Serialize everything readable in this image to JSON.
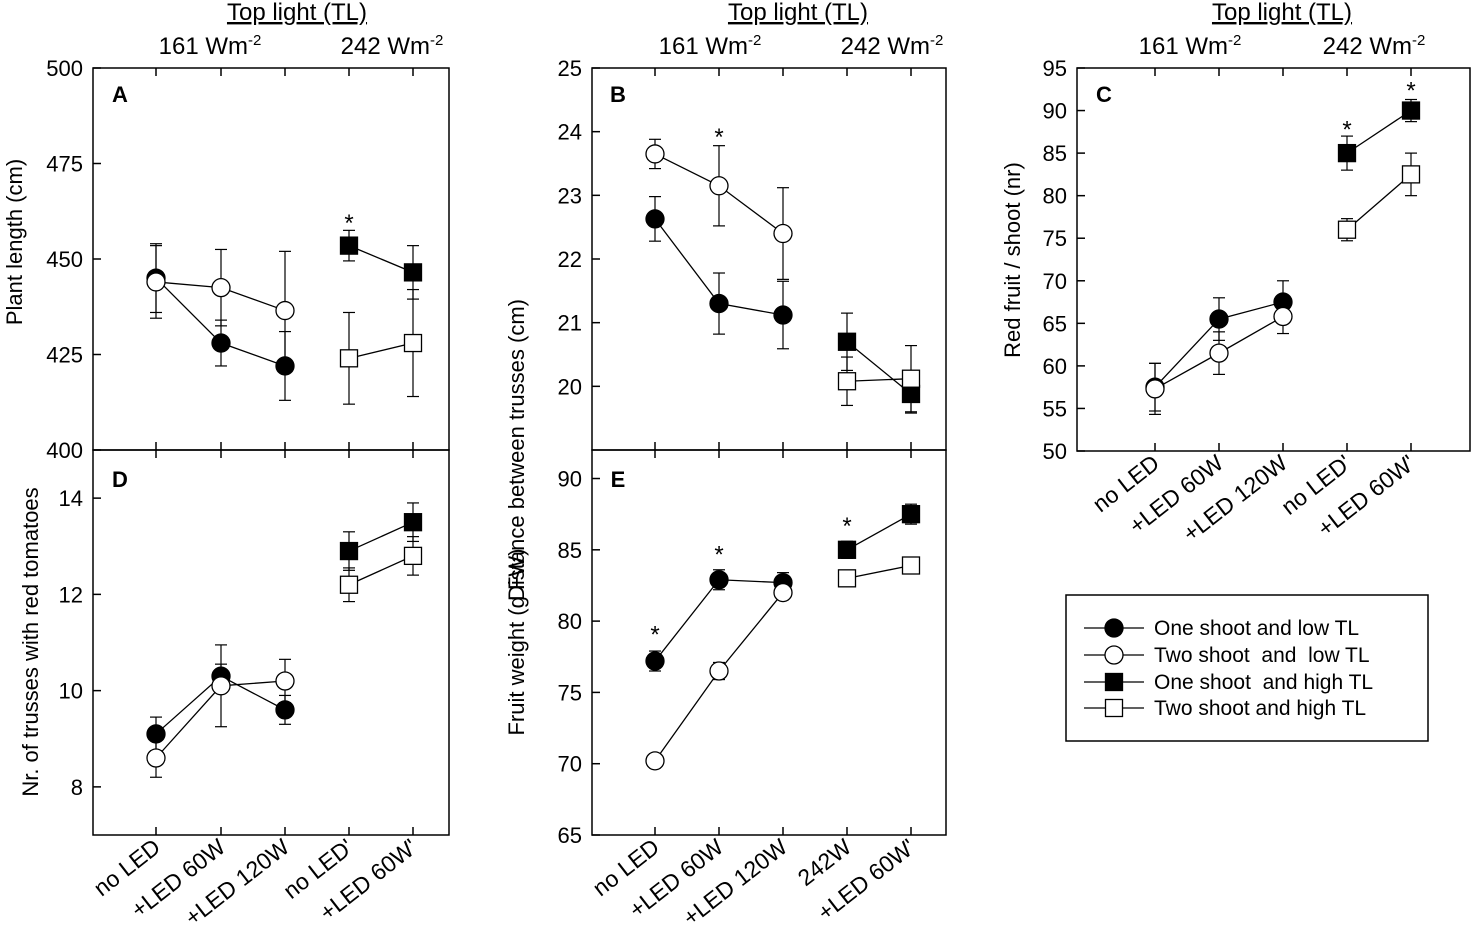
{
  "header": {
    "top_light": "Top light (TL)",
    "intensity_low": "161 Wm",
    "intensity_high": "242 Wm",
    "intensity_exp": "-2"
  },
  "legend": [
    {
      "label": "One shoot and low TL",
      "marker": "filled-circle"
    },
    {
      "label": "Two shoot  and  low TL",
      "marker": "open-circle"
    },
    {
      "label": "One shoot  and high TL",
      "marker": "filled-square"
    },
    {
      "label": "Two shoot and high TL",
      "marker": "open-square"
    }
  ],
  "colors": {
    "marker_fill": "#000000",
    "marker_open": "#ffffff",
    "line": "#000000"
  },
  "chart_data": [
    {
      "panel": "A",
      "type": "line",
      "ylabel": "Plant length (cm)",
      "ylim": [
        400,
        500
      ],
      "yticks": [
        "400",
        "425",
        "450",
        "475",
        "500"
      ],
      "categories": [
        "no LED",
        "+LED 60W",
        "+LED 120W",
        "no LED'",
        "+LED 60W'"
      ],
      "series": [
        {
          "name": "One shoot and low TL",
          "marker": "filled-circle",
          "x": [
            0,
            1,
            2
          ],
          "values": [
            445,
            428,
            422
          ],
          "err": [
            9,
            6,
            9
          ]
        },
        {
          "name": "Two shoot  and  low TL",
          "marker": "open-circle",
          "x": [
            0,
            1,
            2
          ],
          "values": [
            444,
            442.5,
            436.5
          ],
          "err": [
            9.5,
            10,
            15.5
          ]
        },
        {
          "name": "One shoot  and high TL",
          "marker": "filled-square",
          "x": [
            3,
            4
          ],
          "values": [
            453.5,
            446.5
          ],
          "err": [
            4,
            7
          ]
        },
        {
          "name": "Two shoot and high TL",
          "marker": "open-square",
          "x": [
            3,
            4
          ],
          "values": [
            424,
            428
          ],
          "err": [
            12,
            14
          ]
        }
      ],
      "stars": [
        {
          "x": 3,
          "y": 460,
          "text": "*"
        }
      ]
    },
    {
      "panel": "B",
      "type": "line",
      "ylabel": "Distance between trusses (cm)",
      "ylim": [
        19,
        25
      ],
      "yticks": [
        "20",
        "21",
        "22",
        "23",
        "24",
        "25"
      ],
      "categories": [
        "no LED",
        "+LED 60W",
        "+LED 120W",
        "242W",
        "+LED 60W'"
      ],
      "series": [
        {
          "name": "One shoot and low TL",
          "marker": "filled-circle",
          "x": [
            0,
            1,
            2
          ],
          "values": [
            22.63,
            21.3,
            21.12
          ],
          "err": [
            0.35,
            0.48,
            0.53
          ]
        },
        {
          "name": "Two shoot  and  low TL",
          "marker": "open-circle",
          "x": [
            0,
            1,
            2
          ],
          "values": [
            23.65,
            23.15,
            22.4
          ],
          "err": [
            0.23,
            0.63,
            0.72
          ]
        },
        {
          "name": "One shoot  and high TL",
          "marker": "filled-square",
          "x": [
            3,
            4
          ],
          "values": [
            20.7,
            19.88
          ],
          "err": [
            0.45,
            0.3
          ]
        },
        {
          "name": "Two shoot and high TL",
          "marker": "open-square",
          "x": [
            3,
            4
          ],
          "values": [
            20.08,
            20.12
          ],
          "err": [
            0.38,
            0.52
          ]
        }
      ],
      "stars": [
        {
          "x": 1,
          "y": 23.95,
          "text": "*"
        }
      ]
    },
    {
      "panel": "C",
      "type": "line",
      "ylabel": "Red fruit / shoot (nr)",
      "ylim": [
        50,
        95
      ],
      "yticks": [
        "50",
        "55",
        "60",
        "65",
        "70",
        "75",
        "80",
        "85",
        "90",
        "95"
      ],
      "categories": [
        "no LED",
        "+LED 60W",
        "+LED 120W",
        "no LED'",
        "+LED 60W'"
      ],
      "series": [
        {
          "name": "One shoot and low TL",
          "marker": "filled-circle",
          "x": [
            0,
            1,
            2
          ],
          "values": [
            57.5,
            65.5,
            67.5
          ],
          "err": [
            2.8,
            2.5,
            2.5
          ]
        },
        {
          "name": "Two shoot  and  low TL",
          "marker": "open-circle",
          "x": [
            0,
            1,
            2
          ],
          "values": [
            57.3,
            61.5,
            65.8
          ],
          "err": [
            3.0,
            2.5,
            2.0
          ]
        },
        {
          "name": "One shoot  and high TL",
          "marker": "filled-square",
          "x": [
            3,
            4
          ],
          "values": [
            85.0,
            90.0
          ],
          "err": [
            2.0,
            1.3
          ]
        },
        {
          "name": "Two shoot and high TL",
          "marker": "open-square",
          "x": [
            3,
            4
          ],
          "values": [
            76.0,
            82.5
          ],
          "err": [
            1.3,
            2.5
          ]
        }
      ],
      "stars": [
        {
          "x": 3,
          "y": 88.0,
          "text": "*"
        },
        {
          "x": 4,
          "y": 92.6,
          "text": "*"
        }
      ]
    },
    {
      "panel": "D",
      "type": "line",
      "ylabel": "Nr. of trusses with red tomatoes",
      "ylim": [
        7,
        15
      ],
      "yticks": [
        "8",
        "10",
        "12",
        "14"
      ],
      "categories": [
        "no LED",
        "+LED 60W",
        "+LED 120W",
        "no LED'",
        "+LED 60W'"
      ],
      "series": [
        {
          "name": "One shoot and low TL",
          "marker": "filled-circle",
          "x": [
            0,
            1,
            2
          ],
          "values": [
            9.1,
            10.3,
            9.6
          ],
          "err": [
            0.35,
            0.25,
            0.3
          ]
        },
        {
          "name": "Two shoot  and  low TL",
          "marker": "open-circle",
          "x": [
            0,
            1,
            2
          ],
          "values": [
            8.6,
            10.1,
            10.2
          ],
          "err": [
            0.4,
            0.85,
            0.45
          ]
        },
        {
          "name": "One shoot  and high TL",
          "marker": "filled-square",
          "x": [
            3,
            4
          ],
          "values": [
            12.9,
            13.5
          ],
          "err": [
            0.4,
            0.4
          ]
        },
        {
          "name": "Two shoot and high TL",
          "marker": "open-square",
          "x": [
            3,
            4
          ],
          "values": [
            12.2,
            12.8
          ],
          "err": [
            0.35,
            0.4
          ]
        }
      ],
      "stars": []
    },
    {
      "panel": "E",
      "type": "line",
      "ylabel": "Fruit weight (g FW)",
      "ylim": [
        65,
        92
      ],
      "yticks": [
        "65",
        "70",
        "75",
        "80",
        "85",
        "90"
      ],
      "categories": [
        "no LED",
        "+LED 60W",
        "+LED 120W",
        "242W",
        "+LED 60W'"
      ],
      "series": [
        {
          "name": "One shoot and low TL",
          "marker": "filled-circle",
          "x": [
            0,
            1,
            2
          ],
          "values": [
            77.2,
            82.9,
            82.7
          ],
          "err": [
            0.7,
            0.7,
            0.7
          ]
        },
        {
          "name": "Two shoot  and  low TL",
          "marker": "open-circle",
          "x": [
            0,
            1,
            2
          ],
          "values": [
            70.2,
            76.5,
            82.0
          ],
          "err": [
            0.5,
            0.6,
            0.5
          ]
        },
        {
          "name": "One shoot  and high TL",
          "marker": "filled-square",
          "x": [
            3,
            4
          ],
          "values": [
            85.0,
            87.5
          ],
          "err": [
            0.6,
            0.7
          ]
        },
        {
          "name": "Two shoot and high TL",
          "marker": "open-square",
          "x": [
            3,
            4
          ],
          "values": [
            83.0,
            83.9
          ],
          "err": [
            0.5,
            0.5
          ]
        }
      ],
      "stars": [
        {
          "x": 0,
          "y": 79.2,
          "text": "*"
        },
        {
          "x": 1,
          "y": 84.8,
          "text": "*"
        },
        {
          "x": 3,
          "y": 86.8,
          "text": "*"
        }
      ]
    }
  ]
}
